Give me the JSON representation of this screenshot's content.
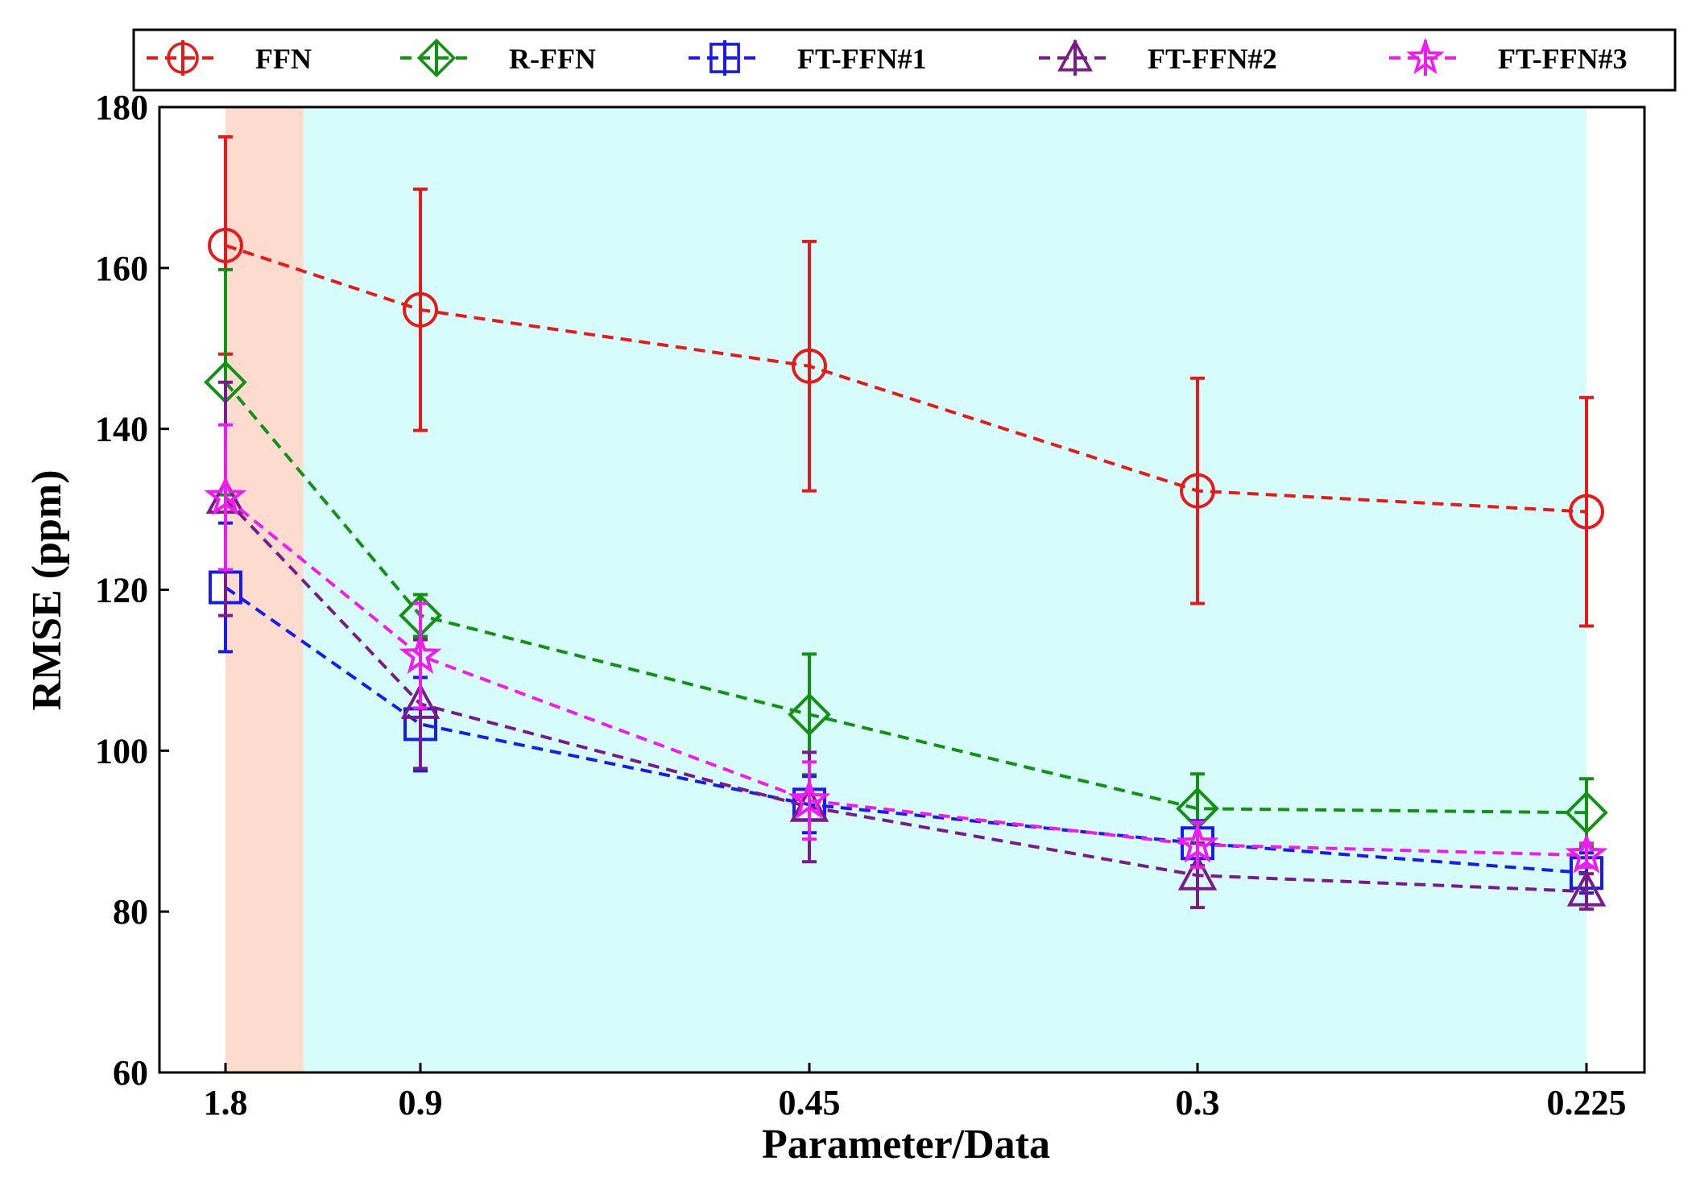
{
  "chart_data": {
    "type": "line",
    "title": "",
    "xlabel": "Parameter/Data",
    "ylabel": "RMSE (ppm)",
    "categories": [
      "1.8",
      "0.9",
      "0.45",
      "0.3",
      "0.225"
    ],
    "ylim": [
      60,
      180
    ],
    "yticks": [
      60,
      80,
      100,
      120,
      140,
      160,
      180
    ],
    "shaded_regions": [
      {
        "from_category": "1.8",
        "to_category_fraction": 0.4,
        "color": "#fddccf"
      },
      {
        "from_category_fraction": 0.4,
        "to_category": "0.225",
        "color": "#d7fcfc"
      }
    ],
    "legend_position": "top, outside above plot",
    "series": [
      {
        "name": "FFN",
        "color": "#e8191b",
        "marker": "circle",
        "values": [
          162.8,
          154.8,
          147.8,
          132.3,
          129.7
        ],
        "errors": [
          13.5,
          15.0,
          15.5,
          14.0,
          14.2
        ]
      },
      {
        "name": "R-FFN",
        "color": "#139113",
        "marker": "diamond",
        "values": [
          145.8,
          116.8,
          104.5,
          92.8,
          92.3
        ],
        "errors": [
          14.0,
          2.6,
          7.5,
          4.3,
          4.2
        ]
      },
      {
        "name": "FT-FFN#1",
        "color": "#1a1aef",
        "marker": "square",
        "values": [
          120.3,
          103.3,
          93.3,
          88.5,
          84.8
        ],
        "errors": [
          8.0,
          5.8,
          3.5,
          2.8,
          2.5
        ]
      },
      {
        "name": "FT-FFN#2",
        "color": "#7a1b8c",
        "marker": "triangle",
        "values": [
          131.3,
          105.8,
          93.0,
          84.5,
          82.5
        ],
        "errors": [
          14.5,
          8.0,
          6.8,
          4.0,
          2.2
        ]
      },
      {
        "name": "FT-FFN#3",
        "color": "#f11af1",
        "marker": "star",
        "values": [
          131.5,
          111.8,
          93.8,
          88.3,
          87.0
        ],
        "errors": [
          9.0,
          6.5,
          4.8,
          2.8,
          1.5
        ]
      }
    ]
  }
}
